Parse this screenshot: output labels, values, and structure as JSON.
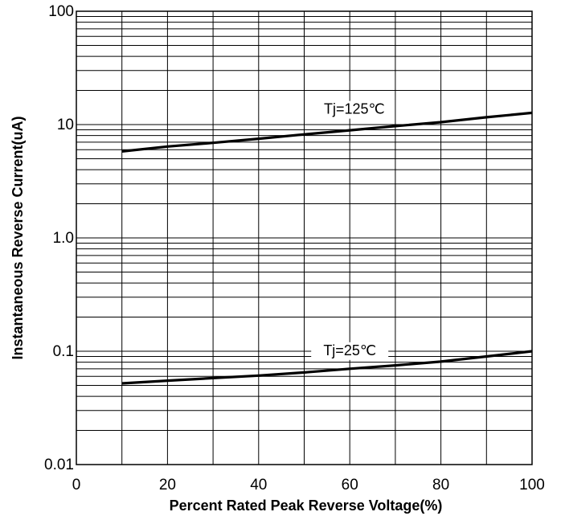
{
  "chart_data": {
    "type": "line",
    "xlabel": "Percent Rated Peak Reverse Voltage(%)",
    "ylabel": "Instantaneous Reverse Current(uA)",
    "xlim": [
      0,
      100
    ],
    "ylim": [
      0.01,
      100
    ],
    "yscale": "log",
    "grid": true,
    "x_ticks": [
      "0",
      "20",
      "40",
      "60",
      "80",
      "100"
    ],
    "x_tick_values": [
      0,
      20,
      40,
      60,
      80,
      100
    ],
    "y_ticks": [
      "100",
      "10",
      "1.0",
      "0.1",
      "0.01"
    ],
    "y_tick_values": [
      100,
      10,
      1,
      0.1,
      0.01
    ],
    "series": [
      {
        "name": "Tj=125℃",
        "x": [
          10,
          20,
          30,
          40,
          50,
          60,
          70,
          80,
          90,
          100
        ],
        "y": [
          5.8,
          6.4,
          6.9,
          7.5,
          8.2,
          8.9,
          9.7,
          10.5,
          11.6,
          12.7
        ]
      },
      {
        "name": "Tj=25℃",
        "x": [
          10,
          20,
          30,
          40,
          50,
          60,
          70,
          80,
          90,
          100
        ],
        "y": [
          0.052,
          0.055,
          0.058,
          0.061,
          0.065,
          0.07,
          0.075,
          0.081,
          0.09,
          0.1
        ]
      }
    ]
  }
}
